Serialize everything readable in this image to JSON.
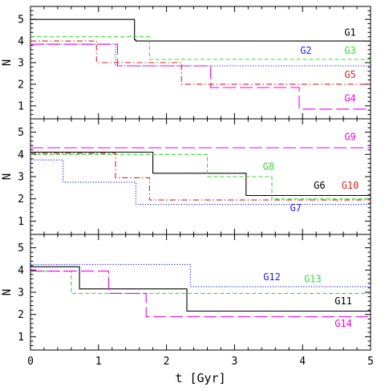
{
  "chart_data": [
    {
      "type": "line",
      "panel": "top",
      "xlim": [
        0,
        5
      ],
      "ylim": [
        0.4,
        5.6
      ],
      "ylabel": "N",
      "yticks": [
        1,
        2,
        3,
        4,
        5
      ],
      "series": [
        {
          "name": "G1",
          "color": "#000000",
          "style": "solid",
          "x": [
            0,
            1.53,
            1.53,
            1.55,
            1.55,
            5
          ],
          "y": [
            5,
            5,
            4.05,
            4.05,
            4,
            4
          ]
        },
        {
          "name": "G2",
          "color": "#1a1aff",
          "style": "dotted",
          "x": [
            0,
            1.25,
            1.25,
            5
          ],
          "y": [
            3.85,
            3.85,
            2.85,
            2.85
          ]
        },
        {
          "name": "G3",
          "color": "#33dd33",
          "style": "dashed",
          "x": [
            0,
            1.75,
            1.75,
            5
          ],
          "y": [
            4.2,
            4.2,
            3.15,
            3.15
          ]
        },
        {
          "name": "G4",
          "color": "#ee00ee",
          "style": "longdash",
          "x": [
            0,
            1.28,
            1.28,
            2.65,
            2.65,
            3.95,
            3.95,
            5
          ],
          "y": [
            3.85,
            3.85,
            2.85,
            2.85,
            1.85,
            1.85,
            0.85,
            0.85
          ]
        },
        {
          "name": "G5",
          "color": "#e02020",
          "style": "dashdot",
          "x": [
            0,
            0.97,
            0.97,
            2.22,
            2.22,
            5
          ],
          "y": [
            4,
            4,
            3,
            3,
            2,
            2
          ]
        }
      ],
      "labels": [
        {
          "text": "G1",
          "x": 4.7,
          "y": 4.25,
          "color": "#000000"
        },
        {
          "text": "G2",
          "x": 4.05,
          "y": 3.4,
          "color": "#1a1aff"
        },
        {
          "text": "G3",
          "x": 4.7,
          "y": 3.4,
          "color": "#33dd33"
        },
        {
          "text": "G5",
          "x": 4.7,
          "y": 2.3,
          "color": "#e02020"
        },
        {
          "text": "G4",
          "x": 4.7,
          "y": 1.2,
          "color": "#ee00ee"
        }
      ]
    },
    {
      "type": "line",
      "panel": "middle",
      "xlim": [
        0,
        5
      ],
      "ylim": [
        0.4,
        5.6
      ],
      "ylabel": "N",
      "yticks": [
        1,
        2,
        3,
        4,
        5
      ],
      "series": [
        {
          "name": "G6",
          "color": "#000000",
          "style": "solid",
          "x": [
            0,
            1.8,
            1.8,
            3.17,
            3.17,
            5
          ],
          "y": [
            4.1,
            4.1,
            3.15,
            3.15,
            2.15,
            2.15
          ]
        },
        {
          "name": "G7",
          "color": "#1a1aff",
          "style": "dotted",
          "x": [
            0,
            0.48,
            0.48,
            1.55,
            1.55,
            5
          ],
          "y": [
            3.75,
            3.75,
            2.75,
            2.75,
            1.75,
            1.75
          ]
        },
        {
          "name": "G8",
          "color": "#33dd33",
          "style": "dashed",
          "x": [
            0,
            2.6,
            2.6,
            3.55,
            3.55,
            5
          ],
          "y": [
            4,
            4,
            3,
            3,
            2,
            2
          ]
        },
        {
          "name": "G9",
          "color": "#ee00ee",
          "style": "longdash",
          "x": [
            0,
            5
          ],
          "y": [
            4.3,
            4.3
          ]
        },
        {
          "name": "G10",
          "color": "#e02020",
          "style": "dashdot",
          "x": [
            0,
            1.25,
            1.25,
            1.75,
            1.75,
            5
          ],
          "y": [
            4.05,
            4.05,
            2.95,
            2.95,
            1.95,
            1.95
          ]
        }
      ],
      "labels": [
        {
          "text": "G9",
          "x": 4.7,
          "y": 4.65,
          "color": "#ee00ee"
        },
        {
          "text": "G8",
          "x": 3.5,
          "y": 3.3,
          "color": "#33dd33"
        },
        {
          "text": "G6",
          "x": 4.25,
          "y": 2.45,
          "color": "#000000"
        },
        {
          "text": "G10",
          "x": 4.7,
          "y": 2.45,
          "color": "#e02020"
        },
        {
          "text": "G7",
          "x": 3.9,
          "y": 1.45,
          "color": "#1a1aff"
        }
      ]
    },
    {
      "type": "line",
      "panel": "bottom",
      "xlim": [
        0,
        5
      ],
      "ylim": [
        0.4,
        5.6
      ],
      "xlabel": "t [Gyr]",
      "ylabel": "N",
      "xticks": [
        0,
        1,
        2,
        3,
        4,
        5
      ],
      "yticks": [
        1,
        2,
        3,
        4,
        5
      ],
      "series": [
        {
          "name": "G11",
          "color": "#000000",
          "style": "solid",
          "x": [
            0,
            0.72,
            0.72,
            2.3,
            2.3,
            5
          ],
          "y": [
            4.15,
            4.15,
            3.15,
            3.15,
            2.15,
            2.15
          ]
        },
        {
          "name": "G12",
          "color": "#1a1aff",
          "style": "dotted",
          "x": [
            0,
            2.35,
            2.35,
            5
          ],
          "y": [
            4.25,
            4.25,
            3.25,
            3.25
          ]
        },
        {
          "name": "G13",
          "color": "#33dd33",
          "style": "dashed",
          "x": [
            0,
            0.6,
            0.6,
            5
          ],
          "y": [
            3.95,
            3.95,
            2.95,
            2.95
          ]
        },
        {
          "name": "G14",
          "color": "#ee00ee",
          "style": "longdash",
          "x": [
            0,
            1.15,
            1.15,
            1.7,
            1.7,
            5
          ],
          "y": [
            3.95,
            3.95,
            2.95,
            2.95,
            1.9,
            1.9
          ]
        }
      ],
      "labels": [
        {
          "text": "G12",
          "x": 3.55,
          "y": 3.55,
          "color": "#1a1aff"
        },
        {
          "text": "G13",
          "x": 4.15,
          "y": 3.45,
          "color": "#33dd33"
        },
        {
          "text": "G11",
          "x": 4.6,
          "y": 2.45,
          "color": "#000000"
        },
        {
          "text": "G14",
          "x": 4.6,
          "y": 1.45,
          "color": "#ee00ee"
        }
      ]
    }
  ]
}
